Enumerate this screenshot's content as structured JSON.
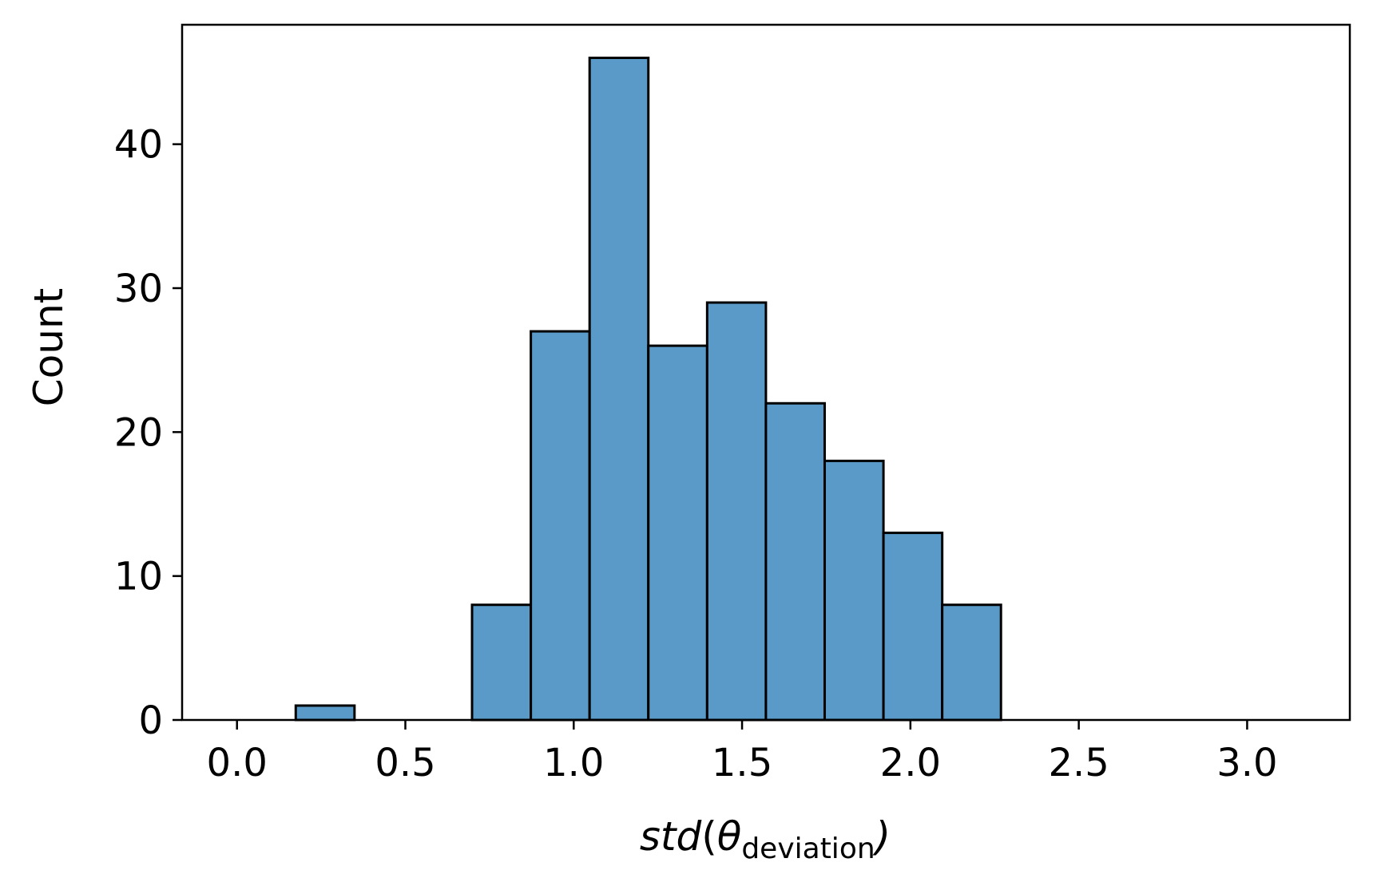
{
  "chart_data": {
    "type": "bar",
    "subtype": "histogram",
    "bin_edges": [
      0.0,
      0.1745,
      0.349,
      0.5236,
      0.6981,
      0.8727,
      1.0472,
      1.2217,
      1.3963,
      1.5708,
      1.7453,
      1.9199,
      2.0944,
      2.2689,
      2.4435,
      2.618,
      2.7925,
      2.9671,
      3.1416
    ],
    "values": [
      0,
      1,
      0,
      0,
      8,
      27,
      46,
      26,
      29,
      22,
      18,
      13,
      8,
      0,
      0,
      0,
      0,
      0
    ],
    "xlabel": {
      "main": "std",
      "open": "(",
      "theta": "θ",
      "sub": "deviation",
      "close": ")"
    },
    "ylabel": "Count",
    "xlim": [
      -0.163,
      3.305
    ],
    "ylim": [
      0,
      48.3
    ],
    "xticks": [
      0.0,
      0.5,
      1.0,
      1.5,
      2.0,
      2.5,
      3.0
    ],
    "xtick_labels": [
      "0.0",
      "0.5",
      "1.0",
      "1.5",
      "2.0",
      "2.5",
      "3.0"
    ],
    "yticks": [
      0,
      10,
      20,
      30,
      40
    ],
    "ytick_labels": [
      "0",
      "10",
      "20",
      "30",
      "40"
    ],
    "grid": false,
    "legend": "none",
    "colors": {
      "bar_fill": "#599ac8",
      "bar_edge": "#000000",
      "axes": "#000000",
      "background": "#ffffff"
    }
  }
}
